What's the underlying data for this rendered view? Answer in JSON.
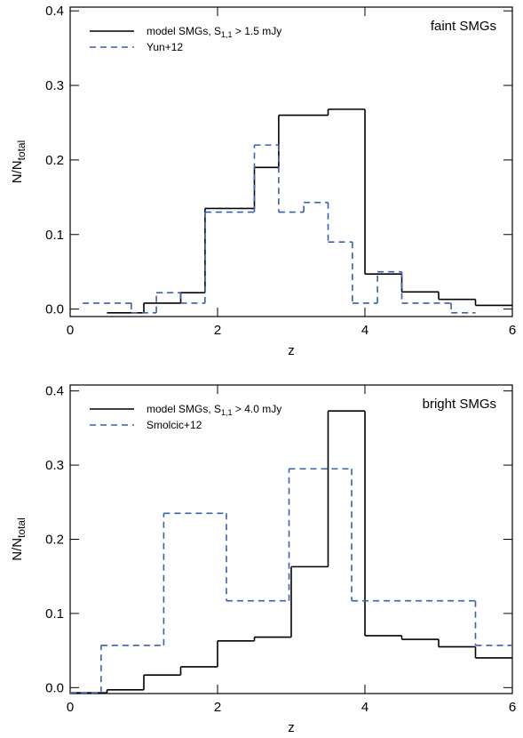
{
  "chart_data": [
    {
      "type": "step",
      "annotation": "faint SMGs",
      "xlabel": "z",
      "ylabel": "N/N",
      "ylabel_sub": "total",
      "xlim": [
        0,
        6
      ],
      "xticks": [
        0,
        2,
        4,
        6
      ],
      "ylim": [
        -0.01,
        0.405
      ],
      "yticks": [
        {
          "value": 0,
          "label": "0.0"
        },
        {
          "value": 0.1,
          "label": "0.1"
        },
        {
          "value": 0.2,
          "label": "0.2"
        },
        {
          "value": 0.3,
          "label": "0.3"
        },
        {
          "value": 0.4,
          "label": "0.4"
        }
      ],
      "legend": "upper left",
      "series": [
        {
          "name": "model SMGs, S",
          "name_sub": "1,1",
          "name_suffix": " > 1.5 mJy",
          "color": "#000000",
          "linestyle": "solid",
          "bins": [
            0.5,
            1.0,
            1.5,
            1.83,
            2.5,
            2.83,
            3.5,
            4.0,
            4.5,
            5.0,
            5.5,
            6.0
          ],
          "values": [
            -0.005,
            0.008,
            0.022,
            0.135,
            0.19,
            0.26,
            0.268,
            0.047,
            0.023,
            0.013,
            0.005
          ]
        },
        {
          "name": "Yun+12",
          "color": "#3a5fad",
          "linestyle": "dashed",
          "bins": [
            0.17,
            0.83,
            1.17,
            1.5,
            1.83,
            2.5,
            2.83,
            3.17,
            3.5,
            3.83,
            4.17,
            4.5,
            5.17,
            5.5
          ],
          "values": [
            0.008,
            -0.005,
            0.022,
            0.008,
            0.13,
            0.22,
            0.13,
            0.143,
            0.09,
            0.008,
            0.05,
            0.008,
            -0.005
          ]
        }
      ]
    },
    {
      "type": "step",
      "annotation": "bright SMGs",
      "xlabel": "z",
      "ylabel": "N/N",
      "ylabel_sub": "total",
      "xlim": [
        0,
        6
      ],
      "xticks": [
        0,
        2,
        4,
        6
      ],
      "ylim": [
        -0.008,
        0.408
      ],
      "yticks": [
        {
          "value": 0,
          "label": "0.0"
        },
        {
          "value": 0.1,
          "label": "0.1"
        },
        {
          "value": 0.2,
          "label": "0.2"
        },
        {
          "value": 0.3,
          "label": "0.3"
        },
        {
          "value": 0.4,
          "label": "0.4"
        }
      ],
      "legend": "upper left",
      "series": [
        {
          "name": "model SMGs, S",
          "name_sub": "1,1",
          "name_suffix": " > 4.0 mJy",
          "color": "#000000",
          "linestyle": "solid",
          "bins": [
            0,
            0.5,
            1.0,
            1.5,
            2.0,
            2.5,
            3.0,
            3.5,
            4.0,
            4.5,
            5.0,
            5.5,
            6.0
          ],
          "values": [
            -0.007,
            -0.003,
            0.017,
            0.028,
            0.063,
            0.068,
            0.163,
            0.373,
            0.07,
            0.065,
            0.055,
            0.04
          ]
        },
        {
          "name": "Smolcic+12",
          "color": "#3a5fad",
          "linestyle": "dashed",
          "bins": [
            0,
            0.42,
            1.27,
            2.12,
            2.97,
            3.82,
            5.5,
            6.0
          ],
          "values": [
            -0.007,
            0.057,
            0.235,
            0.117,
            0.295,
            0.117,
            0.057
          ]
        }
      ]
    }
  ]
}
